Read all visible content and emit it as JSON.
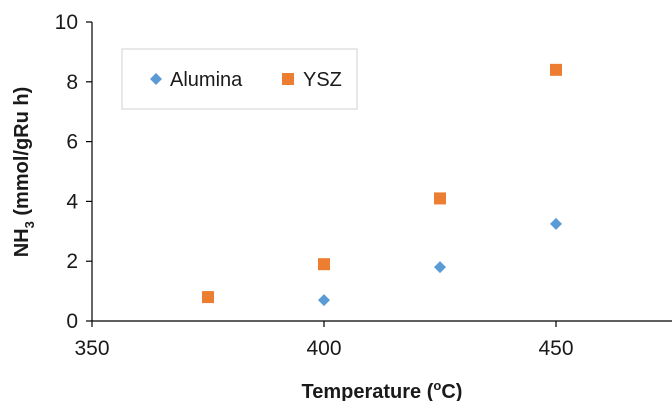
{
  "chart_data": {
    "type": "scatter",
    "title": "",
    "xlabel": {
      "main": "Temperature (",
      "sup": "o",
      "tail": "C)"
    },
    "ylabel": {
      "main": "NH",
      "sub": "3",
      "tail": " (mmol/gRu h)"
    },
    "xlim": [
      350,
      475
    ],
    "ylim": [
      0,
      10
    ],
    "x_ticks": [
      350,
      400,
      450
    ],
    "y_ticks": [
      0,
      2,
      4,
      6,
      8,
      10
    ],
    "grid": false,
    "legend_position": "top-left",
    "series": [
      {
        "name": "Alumina",
        "marker": "diamond",
        "color": "#5b9bd5",
        "points": [
          {
            "x": 400,
            "y": 0.7
          },
          {
            "x": 425,
            "y": 1.8
          },
          {
            "x": 450,
            "y": 3.25
          }
        ]
      },
      {
        "name": "YSZ",
        "marker": "square",
        "color": "#ed7d31",
        "points": [
          {
            "x": 375,
            "y": 0.8
          },
          {
            "x": 400,
            "y": 1.9
          },
          {
            "x": 425,
            "y": 4.1
          },
          {
            "x": 450,
            "y": 8.4
          }
        ]
      }
    ]
  }
}
